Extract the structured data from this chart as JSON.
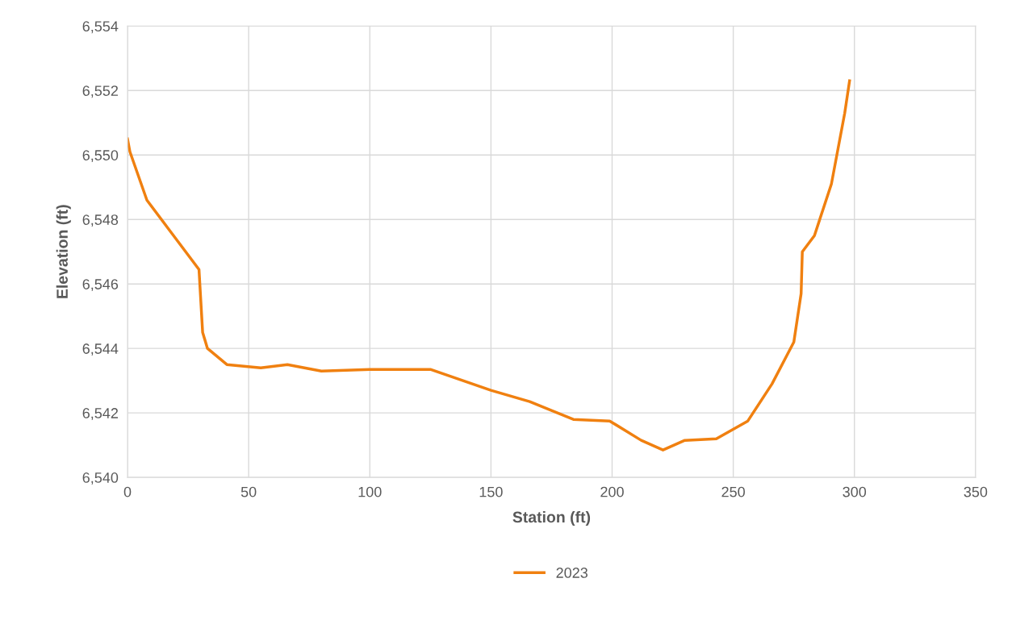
{
  "chart_data": {
    "type": "line",
    "xlabel": "Station (ft)",
    "ylabel": "Elevation (ft)",
    "xlim": [
      0,
      350
    ],
    "xticks": [
      0,
      50,
      100,
      150,
      200,
      250,
      300,
      350
    ],
    "ylim": [
      6540,
      6554
    ],
    "yticks": [
      {
        "value": 6540,
        "label": "6,540"
      },
      {
        "value": 6542,
        "label": "6,542"
      },
      {
        "value": 6544,
        "label": "6,544"
      },
      {
        "value": 6546,
        "label": "6,546"
      },
      {
        "value": 6548,
        "label": "6,548"
      },
      {
        "value": 6550,
        "label": "6,550"
      },
      {
        "value": 6552,
        "label": "6,552"
      },
      {
        "value": 6554,
        "label": "6,554"
      }
    ],
    "grid": true,
    "legend": "bottom",
    "marker": "none",
    "line_style": "solid",
    "series": [
      {
        "name": "2023",
        "color": "#f08010",
        "x": [
          0,
          1,
          8,
          18,
          29.5,
          31,
          33,
          41,
          55,
          66,
          80,
          100,
          125,
          150,
          166,
          184,
          199,
          212,
          221,
          230,
          243,
          256,
          266,
          275,
          278,
          278.5,
          283.5,
          290.5,
          296,
          298
        ],
        "values": [
          6550.5,
          6550.1,
          6548.6,
          6547.6,
          6546.45,
          6544.5,
          6544.0,
          6543.5,
          6543.4,
          6543.5,
          6543.3,
          6543.35,
          6543.35,
          6542.7,
          6542.35,
          6541.8,
          6541.75,
          6541.15,
          6540.85,
          6541.15,
          6541.2,
          6541.75,
          6542.9,
          6544.2,
          6545.7,
          6547.0,
          6547.5,
          6549.1,
          6551.3,
          6552.3
        ]
      }
    ]
  }
}
